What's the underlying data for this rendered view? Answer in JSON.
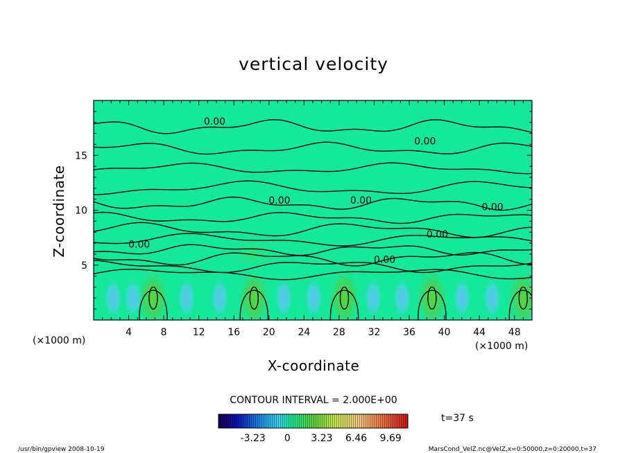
{
  "chart_data": {
    "type": "heatmap",
    "title": "vertical velocity",
    "xlabel": "X-coordinate",
    "ylabel": "Z-coordinate",
    "x_unit": "(×1000 m)",
    "y_unit": "(×1000 m)",
    "xlim": [
      0,
      50
    ],
    "ylim": [
      0,
      20
    ],
    "x_ticks": [
      4,
      8,
      12,
      16,
      20,
      24,
      28,
      32,
      36,
      40,
      44,
      48
    ],
    "y_ticks": [
      5,
      10,
      15
    ],
    "contour_interval_text": "CONTOUR INTERVAL = 2.000E+00",
    "time_text": "t=37 s",
    "colorbar": {
      "tick_labels": [
        "-3.23",
        "0",
        "3.23",
        "6.46",
        "9.69"
      ],
      "tick_values": [
        -3.23,
        0,
        3.23,
        6.46,
        9.69
      ],
      "range": [
        -6.46,
        11.3
      ]
    },
    "contour_labels": [
      "0.00",
      "0.00",
      "0.00",
      "0.00",
      "0.00",
      "0.00",
      "0.00",
      "0.00"
    ],
    "updraft_centers_x": [
      6.8,
      18.3,
      28.6,
      38.6,
      49.0
    ],
    "updraft_center_z": 2.0,
    "colors": {
      "background_field": "#14e89a",
      "updraft": "#4ed24a",
      "downdraft": "#5bc8ee"
    }
  },
  "footer": {
    "left": "/usr/bin/gpview   2008-10-19",
    "right": "MarsCond_VelZ.nc@VelZ,x=0:50000,z=0:20000,t=37"
  }
}
